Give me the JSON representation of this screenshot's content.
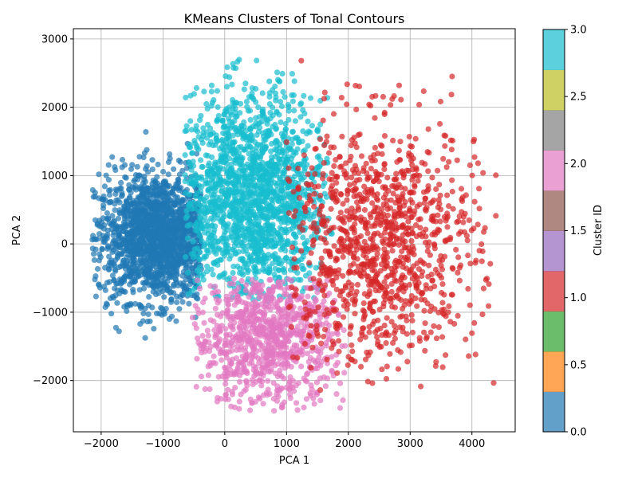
{
  "chart_data": {
    "type": "scatter",
    "title": "KMeans Clusters of Tonal Contours",
    "xlabel": "PCA 1",
    "ylabel": "PCA 2",
    "xlim": [
      -2450,
      4700
    ],
    "ylim": [
      -2750,
      3150
    ],
    "xticks": [
      -2000,
      -1000,
      0,
      1000,
      2000,
      3000,
      4000
    ],
    "yticks": [
      -2000,
      -1000,
      0,
      1000,
      2000,
      3000
    ],
    "xtick_labels": [
      "−2000",
      "−1000",
      "0",
      "1000",
      "2000",
      "3000",
      "4000"
    ],
    "ytick_labels": [
      "−2000",
      "−1000",
      "0",
      "1000",
      "2000",
      "3000"
    ],
    "grid": true,
    "clusters": [
      {
        "id": 0,
        "color": "#1f77b4",
        "center": [
          -1050,
          100
        ],
        "spread": [
          520,
          470
        ],
        "count": 1700,
        "xrange": [
          -2150,
          -380
        ],
        "yrange": [
          -1400,
          1800
        ]
      },
      {
        "id": 3,
        "color": "#17becf",
        "center": [
          450,
          650
        ],
        "spread": [
          620,
          780
        ],
        "count": 1700,
        "xrange": [
          -650,
          1750
        ],
        "yrange": [
          -850,
          2760
        ]
      },
      {
        "id": 2,
        "color": "#e377c2",
        "center": [
          700,
          -1350
        ],
        "spread": [
          620,
          520
        ],
        "count": 900,
        "xrange": [
          -550,
          1950
        ],
        "yrange": [
          -2450,
          -500
        ]
      },
      {
        "id": 1,
        "color": "#d62728",
        "center": [
          2500,
          0
        ],
        "spread": [
          800,
          900
        ],
        "count": 1100,
        "xrange": [
          1000,
          4400
        ],
        "yrange": [
          -2150,
          2870
        ]
      }
    ],
    "colorbar": {
      "label": "Cluster ID",
      "range": [
        0.0,
        3.0
      ],
      "ticks": [
        "0.0",
        "0.5",
        "1.0",
        "1.5",
        "2.0",
        "2.5",
        "3.0"
      ],
      "bands": [
        "#1f77b4",
        "#ff7f0e",
        "#2ca02c",
        "#d62728",
        "#9467bd",
        "#8c564b",
        "#e377c2",
        "#7f7f7f",
        "#bcbd22",
        "#17becf"
      ]
    }
  }
}
